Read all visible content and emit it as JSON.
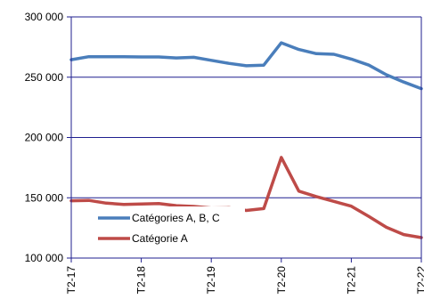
{
  "chart_data": {
    "type": "line",
    "title": "",
    "xlabel": "",
    "ylabel": "",
    "ylim": [
      100000,
      300000
    ],
    "yticks": [
      100000,
      150000,
      200000,
      250000,
      300000
    ],
    "ytick_labels": [
      "100 000",
      "150 000",
      "200 000",
      "250 000",
      "300 000"
    ],
    "gridlines": "horizontal",
    "legend_position": "lower-left",
    "x_ticks": [
      {
        "label": "T2-17",
        "x": 0
      },
      {
        "label": "T2-18",
        "x": 4
      },
      {
        "label": "T2-19",
        "x": 8
      },
      {
        "label": "T2-20",
        "x": 12
      },
      {
        "label": "T2-21",
        "x": 16
      },
      {
        "label": "T2-22",
        "x": 20
      }
    ],
    "x": [
      0,
      1,
      2,
      3,
      4,
      5,
      6,
      7,
      8,
      9,
      10,
      11,
      12,
      13,
      14,
      15,
      16,
      17,
      18,
      19,
      20
    ],
    "series": [
      {
        "name": "Catégories A, B, C",
        "color": "#4a7ebb",
        "values": [
          264500,
          267000,
          267000,
          267000,
          266800,
          266800,
          266000,
          266500,
          264000,
          261500,
          259500,
          260000,
          278500,
          273000,
          269500,
          269000,
          265000,
          260000,
          252000,
          246000,
          240500
        ]
      },
      {
        "name": "Catégorie A",
        "color": "#be4b48",
        "values": [
          147500,
          147800,
          145500,
          144500,
          144800,
          145200,
          143500,
          142800,
          141500,
          141800,
          139500,
          141000,
          183500,
          155500,
          151000,
          147000,
          143000,
          134500,
          125500,
          119500,
          117000
        ]
      }
    ]
  }
}
